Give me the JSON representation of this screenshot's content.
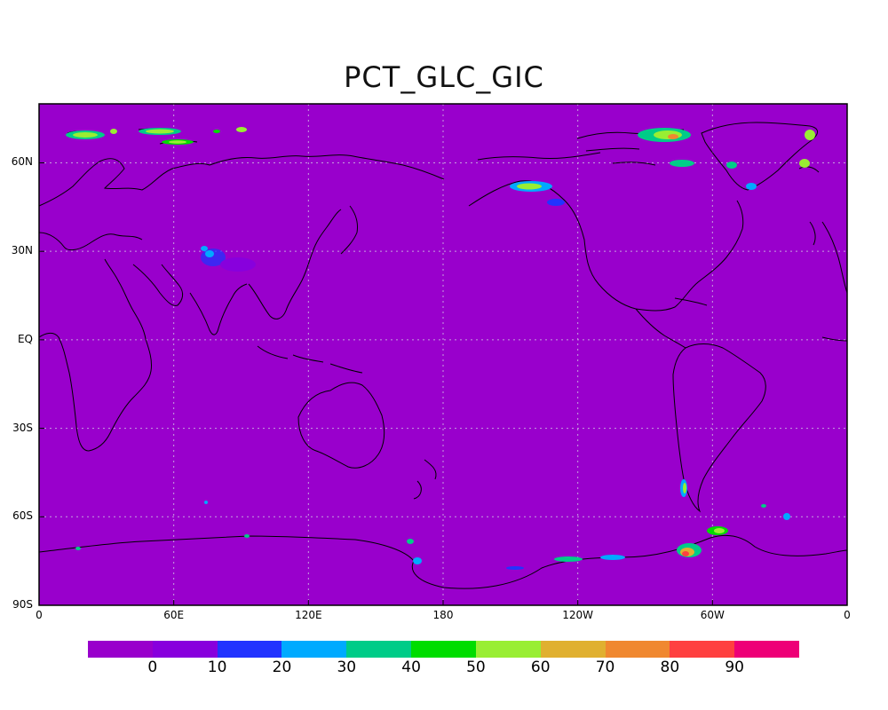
{
  "title": "PCT_GLC_GIC",
  "colors": {
    "background": "#9900cc",
    "coast": "#000000",
    "grid": "#c8a0e0"
  },
  "y_ticks": [
    {
      "lat": 60,
      "label": "60N"
    },
    {
      "lat": 30,
      "label": "30N"
    },
    {
      "lat": 0,
      "label": "EQ"
    },
    {
      "lat": -30,
      "label": "30S"
    },
    {
      "lat": -60,
      "label": "60S"
    },
    {
      "lat": -90,
      "label": "90S"
    }
  ],
  "x_ticks": [
    {
      "lon": 0,
      "label": "0"
    },
    {
      "lon": 60,
      "label": "60E"
    },
    {
      "lon": 120,
      "label": "120E"
    },
    {
      "lon": 180,
      "label": "180"
    },
    {
      "lon": 240,
      "label": "120W"
    },
    {
      "lon": 300,
      "label": "60W"
    },
    {
      "lon": 360,
      "label": "0"
    }
  ],
  "colorbar": {
    "colors": [
      "#9900cc",
      "#8800dd",
      "#2233ff",
      "#00aaff",
      "#00cc88",
      "#00dd00",
      "#99ee33",
      "#e0b030",
      "#f08830",
      "#ff4040",
      "#ee0077"
    ],
    "labels": [
      "0",
      "10",
      "20",
      "30",
      "40",
      "50",
      "60",
      "70",
      "80",
      "90"
    ]
  }
}
